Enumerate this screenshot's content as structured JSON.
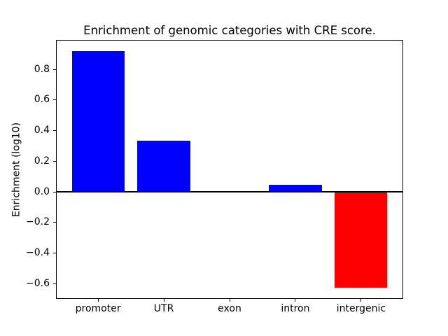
{
  "figure": {
    "title": "Enrichment of genomic categories with CRE score.",
    "ylabel": "Enrichment (log10)"
  },
  "chart_data": {
    "type": "bar",
    "title": "Enrichment of genomic categories with CRE score.",
    "xlabel": "",
    "ylabel": "Enrichment (log10)",
    "categories": [
      "promoter",
      "UTR",
      "exon",
      "intron",
      "intergenic"
    ],
    "values": [
      0.92,
      0.335,
      0.0,
      0.046,
      -0.625
    ],
    "positive_color": "#0000ff",
    "negative_color": "#ff0000",
    "background_color": "#ffffff",
    "axis_color": "#000000",
    "ylim": [
      -0.7,
      0.99
    ],
    "xlim": [
      -0.64,
      4.64
    ],
    "yticks": [
      0.8,
      0.6,
      0.4,
      0.2,
      0.0,
      -0.2,
      -0.4,
      -0.6
    ],
    "ytick_labels": [
      "0.8",
      "0.6",
      "0.4",
      "0.2",
      "0.0",
      "−0.2",
      "−0.4",
      "−0.6"
    ],
    "bar_width_fraction": 0.8,
    "grid": false,
    "zero_line": true,
    "legend": "none"
  }
}
